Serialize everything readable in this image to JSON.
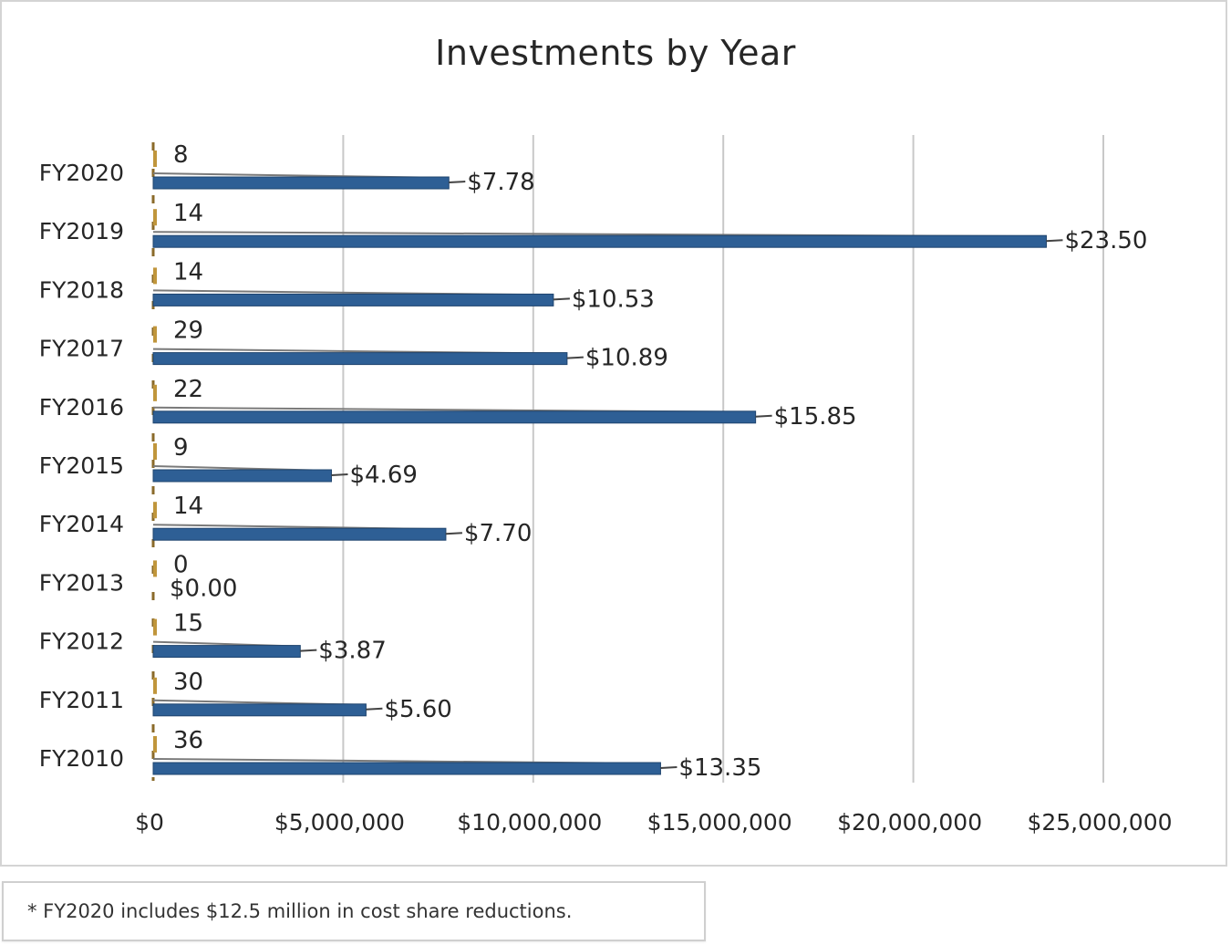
{
  "chart_data": {
    "type": "bar",
    "orientation": "horizontal",
    "title": "Investments by Year",
    "xlabel": "",
    "ylabel": "",
    "xlim": [
      0,
      25000000
    ],
    "x_ticks": [
      0,
      5000000,
      10000000,
      15000000,
      20000000,
      25000000
    ],
    "x_tick_labels": [
      "$0",
      "$5,000,000",
      "$10,000,000",
      "$15,000,000",
      "$20,000,000",
      "$25,000,000"
    ],
    "grid": "vertical",
    "legend": "none",
    "categories": [
      "FY2020",
      "FY2019",
      "FY2018",
      "FY2017",
      "FY2016",
      "FY2015",
      "FY2014",
      "FY2013",
      "FY2012",
      "FY2011",
      "FY2010"
    ],
    "series": [
      {
        "values": [
          8,
          14,
          14,
          29,
          22,
          9,
          14,
          0,
          15,
          30,
          36
        ],
        "labels": [
          "8",
          "14",
          "14",
          "29",
          "22",
          "9",
          "14",
          "0",
          "15",
          "30",
          "36"
        ],
        "color": "#c0963c"
      },
      {
        "values": [
          7780000,
          23500000,
          10530000,
          10890000,
          15850000,
          4690000,
          7700000,
          0,
          3870000,
          5600000,
          13350000
        ],
        "labels": [
          "$7.78",
          "$23.50",
          "$10.53",
          "$10.89",
          "$15.85",
          "$4.69",
          "$7.70",
          "$0.00",
          "$3.87",
          "$5.60",
          "$13.35"
        ],
        "color": "#2e5f95"
      }
    ]
  },
  "footnote": "* FY2020 includes $12.5 million in cost share reductions."
}
